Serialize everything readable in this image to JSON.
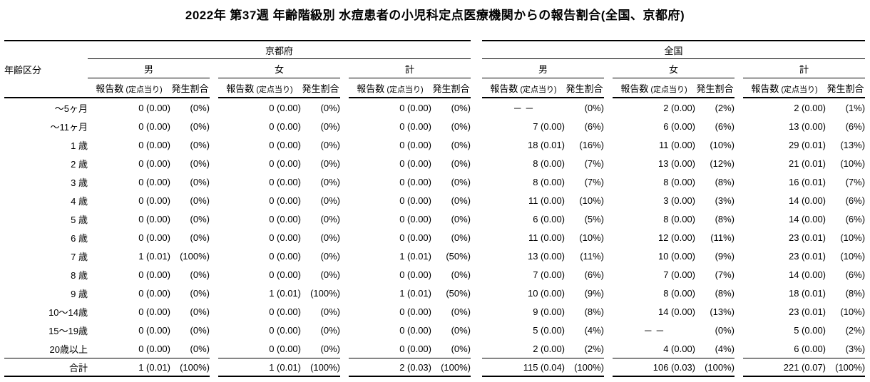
{
  "chart_data": {
    "type": "table",
    "title": "2022年 第37週 年齢階級別 水痘患者の小児科定点医療機関からの報告割合(全国、京都府)",
    "row_header": "年齢区分",
    "region_headers": [
      "京都府",
      "全国"
    ],
    "gender_headers": [
      "男",
      "女",
      "計"
    ],
    "metric_headers": {
      "count": "報告数",
      "count_note": "(定点当り)",
      "rate": "発生割合"
    },
    "columns_order": [
      "京都府 男 報告数(定点当り)",
      "京都府 男 発生割合",
      "京都府 女 報告数(定点当り)",
      "京都府 女 発生割合",
      "京都府 計 報告数(定点当り)",
      "京都府 計 発生割合",
      "全国 男 報告数(定点当り)",
      "全国 男 発生割合",
      "全国 女 報告数(定点当り)",
      "全国 女 発生割合",
      "全国 計 報告数(定点当り)",
      "全国 計 発生割合"
    ],
    "missing_marker": "－ －",
    "rows": [
      {
        "label": "～5ヶ月",
        "cells": [
          "0 (0.00)",
          "(0%)",
          "0 (0.00)",
          "(0%)",
          "0 (0.00)",
          "(0%)",
          "－ －",
          "(0%)",
          "2 (0.00)",
          "(2%)",
          "2 (0.00)",
          "(1%)"
        ]
      },
      {
        "label": "～11ヶ月",
        "cells": [
          "0 (0.00)",
          "(0%)",
          "0 (0.00)",
          "(0%)",
          "0 (0.00)",
          "(0%)",
          "7 (0.00)",
          "(6%)",
          "6 (0.00)",
          "(6%)",
          "13 (0.00)",
          "(6%)"
        ]
      },
      {
        "label": "1 歳",
        "cells": [
          "0 (0.00)",
          "(0%)",
          "0 (0.00)",
          "(0%)",
          "0 (0.00)",
          "(0%)",
          "18 (0.01)",
          "(16%)",
          "11 (0.00)",
          "(10%)",
          "29 (0.01)",
          "(13%)"
        ]
      },
      {
        "label": "2 歳",
        "cells": [
          "0 (0.00)",
          "(0%)",
          "0 (0.00)",
          "(0%)",
          "0 (0.00)",
          "(0%)",
          "8 (0.00)",
          "(7%)",
          "13 (0.00)",
          "(12%)",
          "21 (0.01)",
          "(10%)"
        ]
      },
      {
        "label": "3 歳",
        "cells": [
          "0 (0.00)",
          "(0%)",
          "0 (0.00)",
          "(0%)",
          "0 (0.00)",
          "(0%)",
          "8 (0.00)",
          "(7%)",
          "8 (0.00)",
          "(8%)",
          "16 (0.01)",
          "(7%)"
        ]
      },
      {
        "label": "4 歳",
        "cells": [
          "0 (0.00)",
          "(0%)",
          "0 (0.00)",
          "(0%)",
          "0 (0.00)",
          "(0%)",
          "11 (0.00)",
          "(10%)",
          "3 (0.00)",
          "(3%)",
          "14 (0.00)",
          "(6%)"
        ]
      },
      {
        "label": "5 歳",
        "cells": [
          "0 (0.00)",
          "(0%)",
          "0 (0.00)",
          "(0%)",
          "0 (0.00)",
          "(0%)",
          "6 (0.00)",
          "(5%)",
          "8 (0.00)",
          "(8%)",
          "14 (0.00)",
          "(6%)"
        ]
      },
      {
        "label": "6 歳",
        "cells": [
          "0 (0.00)",
          "(0%)",
          "0 (0.00)",
          "(0%)",
          "0 (0.00)",
          "(0%)",
          "11 (0.00)",
          "(10%)",
          "12 (0.00)",
          "(11%)",
          "23 (0.01)",
          "(10%)"
        ]
      },
      {
        "label": "7 歳",
        "cells": [
          "1 (0.01)",
          "(100%)",
          "0 (0.00)",
          "(0%)",
          "1 (0.01)",
          "(50%)",
          "13 (0.00)",
          "(11%)",
          "10 (0.00)",
          "(9%)",
          "23 (0.01)",
          "(10%)"
        ]
      },
      {
        "label": "8 歳",
        "cells": [
          "0 (0.00)",
          "(0%)",
          "0 (0.00)",
          "(0%)",
          "0 (0.00)",
          "(0%)",
          "7 (0.00)",
          "(6%)",
          "7 (0.00)",
          "(7%)",
          "14 (0.00)",
          "(6%)"
        ]
      },
      {
        "label": "9 歳",
        "cells": [
          "0 (0.00)",
          "(0%)",
          "1 (0.01)",
          "(100%)",
          "1 (0.01)",
          "(50%)",
          "10 (0.00)",
          "(9%)",
          "8 (0.00)",
          "(8%)",
          "18 (0.01)",
          "(8%)"
        ]
      },
      {
        "label": "10～14歳",
        "cells": [
          "0 (0.00)",
          "(0%)",
          "0 (0.00)",
          "(0%)",
          "0 (0.00)",
          "(0%)",
          "9 (0.00)",
          "(8%)",
          "14 (0.00)",
          "(13%)",
          "23 (0.01)",
          "(10%)"
        ]
      },
      {
        "label": "15～19歳",
        "cells": [
          "0 (0.00)",
          "(0%)",
          "0 (0.00)",
          "(0%)",
          "0 (0.00)",
          "(0%)",
          "5 (0.00)",
          "(4%)",
          "－ －",
          "(0%)",
          "5 (0.00)",
          "(2%)"
        ]
      },
      {
        "label": "20歳以上",
        "cells": [
          "0 (0.00)",
          "(0%)",
          "0 (0.00)",
          "(0%)",
          "0 (0.00)",
          "(0%)",
          "2 (0.00)",
          "(2%)",
          "4 (0.00)",
          "(4%)",
          "6 (0.00)",
          "(3%)"
        ]
      }
    ],
    "total": {
      "label": "合計",
      "cells": [
        "1 (0.01)",
        "(100%)",
        "1 (0.01)",
        "(100%)",
        "2 (0.03)",
        "(100%)",
        "115 (0.04)",
        "(100%)",
        "106 (0.03)",
        "(100%)",
        "221 (0.07)",
        "(100%)"
      ]
    }
  }
}
